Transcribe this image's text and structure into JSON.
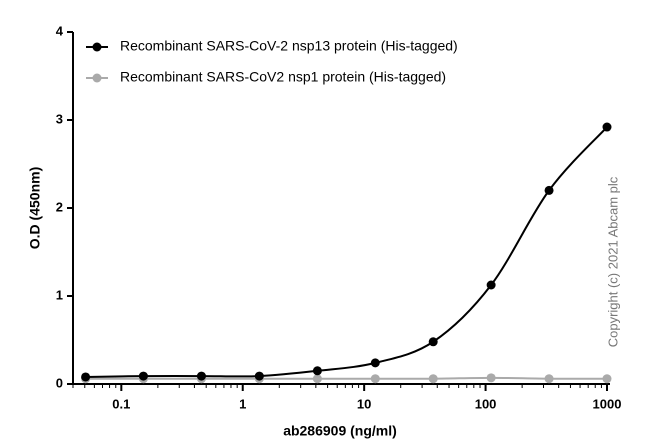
{
  "chart_data": {
    "type": "scatter",
    "xlabel": "ab286909 (ng/ml)",
    "ylabel": "O.D (450nm)",
    "x": [
      0.0508,
      0.152,
      0.457,
      1.37,
      4.12,
      12.35,
      37.04,
      111.1,
      333.3,
      1000
    ],
    "series": [
      {
        "name": "Recombinant SARS-CoV-2 nsp13 protein (His-tagged)",
        "color": "#000000",
        "values": [
          0.08,
          0.09,
          0.09,
          0.09,
          0.15,
          0.24,
          0.48,
          1.125,
          2.2,
          2.92
        ]
      },
      {
        "name": "Recombinant SARS-CoV2 nsp1 protein (His-tagged)",
        "color": "#aaaaaa",
        "values": [
          0.06,
          0.06,
          0.06,
          0.06,
          0.06,
          0.06,
          0.06,
          0.07,
          0.06,
          0.06
        ]
      }
    ],
    "xlim": [
      0.04,
      1000
    ],
    "xticks": [
      0.1,
      1,
      10,
      100,
      1000
    ],
    "xscale": "log",
    "ylim": [
      0,
      4
    ],
    "yticks": [
      0,
      1,
      2,
      3,
      4
    ],
    "grid": false,
    "legend": "upper left",
    "annotation": "Copyright (c) 2021 Abcam plc"
  }
}
